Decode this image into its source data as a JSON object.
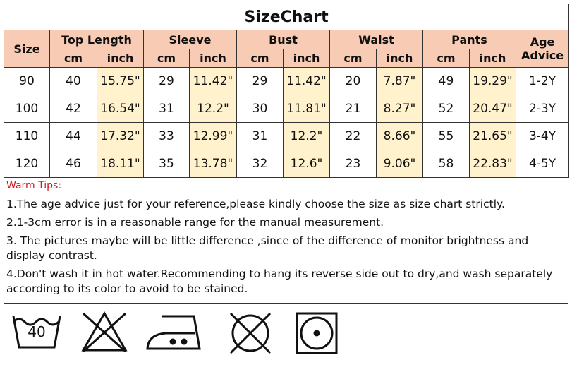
{
  "title": "SizeChart",
  "table": {
    "header": {
      "size": "Size",
      "groups": [
        "Top Length",
        "Sleeve",
        "Bust",
        "Waist",
        "Pants"
      ],
      "age": "Age Advice",
      "units": [
        "cm",
        "inch",
        "cm",
        "inch",
        "cm",
        "inch",
        "cm",
        "inch",
        "cm",
        "inch"
      ]
    },
    "rows": [
      [
        "90",
        "40",
        "15.75\"",
        "29",
        "11.42\"",
        "29",
        "11.42\"",
        "20",
        "7.87\"",
        "49",
        "19.29\"",
        "1-2Y"
      ],
      [
        "100",
        "42",
        "16.54\"",
        "31",
        "12.2\"",
        "30",
        "11.81\"",
        "21",
        "8.27\"",
        "52",
        "20.47\"",
        "2-3Y"
      ],
      [
        "110",
        "44",
        "17.32\"",
        "33",
        "12.99\"",
        "31",
        "12.2\"",
        "22",
        "8.66\"",
        "55",
        "21.65\"",
        "3-4Y"
      ],
      [
        "120",
        "46",
        "18.11\"",
        "35",
        "13.78\"",
        "32",
        "12.6\"",
        "23",
        "9.06\"",
        "58",
        "22.83\"",
        "4-5Y"
      ]
    ]
  },
  "tips": {
    "heading": "Warm Tips:",
    "items": [
      "1.The age advice just for your reference,please kindly choose the size as size chart strictly.",
      "2.1-3cm error is in a reasonable range for the manual measurement.",
      "3. The pictures maybe will be little difference ,since of the difference of monitor brightness and display contrast.",
      "4.Don't wash it in hot water.Recommending to hang its reverse side out to dry,and wash separately according to its color to avoid to be stained."
    ]
  },
  "icons": {
    "wash_temp": "40"
  }
}
